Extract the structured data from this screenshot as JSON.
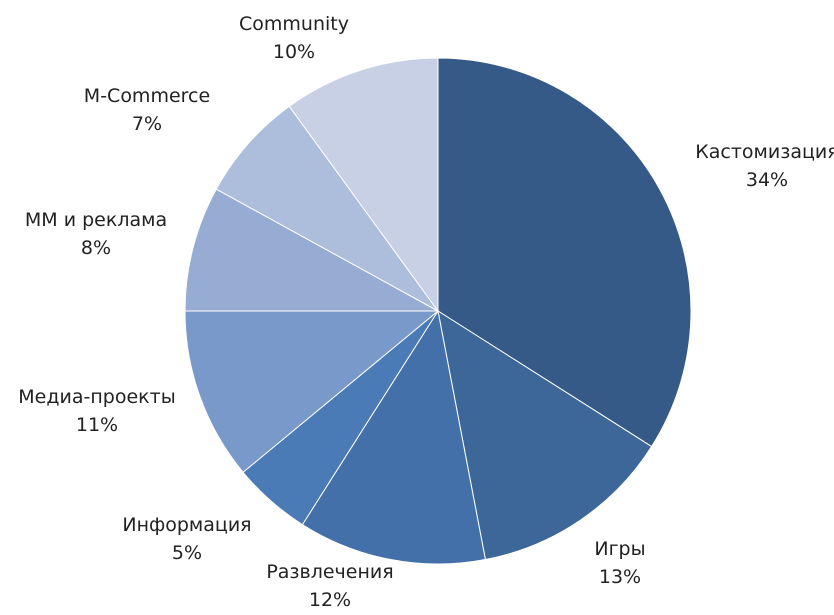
{
  "chart_data": {
    "type": "pie",
    "title": "",
    "start": "top",
    "direction": "clockwise",
    "slices": [
      {
        "label": "Кастомизация",
        "value": 34,
        "value_label": "34%",
        "color": "#365a87"
      },
      {
        "label": "Игры",
        "value": 13,
        "value_label": "13%",
        "color": "#3d6699"
      },
      {
        "label": "Развлечения",
        "value": 12,
        "value_label": "12%",
        "color": "#4370a8"
      },
      {
        "label": "Информация",
        "value": 5,
        "value_label": "5%",
        "color": "#4a7bb7"
      },
      {
        "label": "Медиа-проекты",
        "value": 11,
        "value_label": "11%",
        "color": "#7a99cb"
      },
      {
        "label": "ММ и реклама",
        "value": 8,
        "value_label": "8%",
        "color": "#97acd3"
      },
      {
        "label": "M-Commerce",
        "value": 7,
        "value_label": "7%",
        "color": "#adbddc"
      },
      {
        "label": "Community",
        "value": 10,
        "value_label": "10%",
        "color": "#c7d0e5"
      }
    ]
  }
}
